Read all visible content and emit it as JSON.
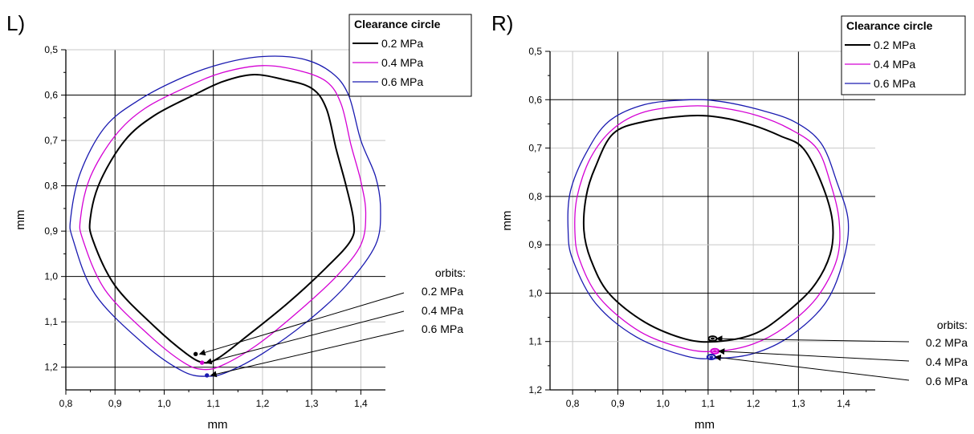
{
  "chart_data": [
    {
      "type": "line",
      "panel_label": "L)",
      "xlabel": "mm",
      "ylabel": "mm",
      "xlim": [
        0.8,
        1.45
      ],
      "ylim": [
        1.25,
        0.5
      ],
      "y_inverted": true,
      "xticks": [
        "0,8",
        "0,9",
        "1,0",
        "1,1",
        "1,2",
        "1,3",
        "1,4"
      ],
      "yticks": [
        "0,5",
        "0,6",
        "0,7",
        "0,8",
        "0,9",
        "1,0",
        "1,1",
        "1,2"
      ],
      "grid": true,
      "legend": {
        "title": "Clearance circle",
        "placement": "top-right"
      },
      "series": [
        {
          "name": "0.2 MPa",
          "color": "#000000",
          "points": [
            [
              1.18,
              0.555
            ],
            [
              1.24,
              0.565
            ],
            [
              1.3,
              0.585
            ],
            [
              1.33,
              0.63
            ],
            [
              1.35,
              0.72
            ],
            [
              1.37,
              0.8
            ],
            [
              1.385,
              0.875
            ],
            [
              1.38,
              0.92
            ],
            [
              1.33,
              0.98
            ],
            [
              1.25,
              1.06
            ],
            [
              1.17,
              1.13
            ],
            [
              1.11,
              1.18
            ],
            [
              1.08,
              1.19
            ],
            [
              1.045,
              1.17
            ],
            [
              0.98,
              1.11
            ],
            [
              0.9,
              1.02
            ],
            [
              0.855,
              0.92
            ],
            [
              0.85,
              0.87
            ],
            [
              0.87,
              0.79
            ],
            [
              0.92,
              0.7
            ],
            [
              0.98,
              0.645
            ],
            [
              1.06,
              0.6
            ],
            [
              1.12,
              0.57
            ],
            [
              1.18,
              0.555
            ]
          ]
        },
        {
          "name": "0.4 MPa",
          "color": "#d400d4",
          "points": [
            [
              1.2,
              0.535
            ],
            [
              1.27,
              0.545
            ],
            [
              1.33,
              0.57
            ],
            [
              1.36,
              0.62
            ],
            [
              1.38,
              0.71
            ],
            [
              1.4,
              0.79
            ],
            [
              1.41,
              0.86
            ],
            [
              1.4,
              0.93
            ],
            [
              1.35,
              1.0
            ],
            [
              1.27,
              1.08
            ],
            [
              1.19,
              1.15
            ],
            [
              1.12,
              1.195
            ],
            [
              1.08,
              1.205
            ],
            [
              1.04,
              1.19
            ],
            [
              0.97,
              1.13
            ],
            [
              0.88,
              1.03
            ],
            [
              0.835,
              0.92
            ],
            [
              0.83,
              0.87
            ],
            [
              0.85,
              0.78
            ],
            [
              0.9,
              0.69
            ],
            [
              0.96,
              0.63
            ],
            [
              1.05,
              0.58
            ],
            [
              1.12,
              0.55
            ],
            [
              1.2,
              0.535
            ]
          ]
        },
        {
          "name": "0.6 MPa",
          "color": "#1a1ab0",
          "points": [
            [
              1.2,
              0.515
            ],
            [
              1.28,
              0.52
            ],
            [
              1.34,
              0.55
            ],
            [
              1.375,
              0.6
            ],
            [
              1.4,
              0.7
            ],
            [
              1.43,
              0.78
            ],
            [
              1.44,
              0.85
            ],
            [
              1.43,
              0.93
            ],
            [
              1.37,
              1.02
            ],
            [
              1.29,
              1.1
            ],
            [
              1.2,
              1.17
            ],
            [
              1.13,
              1.21
            ],
            [
              1.09,
              1.22
            ],
            [
              1.04,
              1.21
            ],
            [
              0.96,
              1.15
            ],
            [
              0.86,
              1.04
            ],
            [
              0.815,
              0.92
            ],
            [
              0.81,
              0.87
            ],
            [
              0.83,
              0.77
            ],
            [
              0.88,
              0.67
            ],
            [
              0.95,
              0.61
            ],
            [
              1.04,
              0.56
            ],
            [
              1.12,
              0.53
            ],
            [
              1.2,
              0.515
            ]
          ]
        }
      ],
      "orbits": [
        {
          "color": "#000000",
          "x": 1.064,
          "y": 1.171
        },
        {
          "color": "#d400d4",
          "x": 1.077,
          "y": 1.19
        },
        {
          "color": "#1a1ab0",
          "x": 1.087,
          "y": 1.218
        }
      ],
      "orbits_title": "orbits:",
      "orbit_labels": [
        "0.2 MPa",
        "0.4 MPa",
        "0.6 MPa"
      ]
    },
    {
      "type": "line",
      "panel_label": "R)",
      "xlabel": "mm",
      "ylabel": "mm",
      "xlim": [
        0.75,
        1.47
      ],
      "ylim": [
        1.2,
        0.5
      ],
      "y_inverted": true,
      "xticks": [
        "0,8",
        "0,9",
        "1,0",
        "1,1",
        "1,2",
        "1,3",
        "1,4"
      ],
      "yticks": [
        "0,5",
        "0,6",
        "0,7",
        "0,8",
        "0,9",
        "1,0",
        "1,1",
        "1,2"
      ],
      "grid": true,
      "legend": {
        "title": "Clearance circle",
        "placement": "top-right"
      },
      "series": [
        {
          "name": "0.2 MPa",
          "color": "#000000",
          "points": [
            [
              1.06,
              0.633
            ],
            [
              1.13,
              0.637
            ],
            [
              1.2,
              0.653
            ],
            [
              1.26,
              0.675
            ],
            [
              1.31,
              0.7
            ],
            [
              1.35,
              0.77
            ],
            [
              1.375,
              0.85
            ],
            [
              1.37,
              0.92
            ],
            [
              1.33,
              0.99
            ],
            [
              1.26,
              1.05
            ],
            [
              1.2,
              1.085
            ],
            [
              1.12,
              1.1
            ],
            [
              1.05,
              1.095
            ],
            [
              0.96,
              1.06
            ],
            [
              0.88,
              1.0
            ],
            [
              0.84,
              0.93
            ],
            [
              0.825,
              0.87
            ],
            [
              0.83,
              0.8
            ],
            [
              0.85,
              0.74
            ],
            [
              0.89,
              0.67
            ],
            [
              0.96,
              0.645
            ],
            [
              1.06,
              0.633
            ]
          ]
        },
        {
          "name": "0.4 MPa",
          "color": "#d400d4",
          "points": [
            [
              1.06,
              0.613
            ],
            [
              1.13,
              0.617
            ],
            [
              1.21,
              0.633
            ],
            [
              1.28,
              0.66
            ],
            [
              1.34,
              0.7
            ],
            [
              1.37,
              0.77
            ],
            [
              1.39,
              0.85
            ],
            [
              1.385,
              0.93
            ],
            [
              1.34,
              1.01
            ],
            [
              1.27,
              1.07
            ],
            [
              1.2,
              1.105
            ],
            [
              1.12,
              1.12
            ],
            [
              1.05,
              1.115
            ],
            [
              0.95,
              1.08
            ],
            [
              0.86,
              1.01
            ],
            [
              0.815,
              0.93
            ],
            [
              0.805,
              0.87
            ],
            [
              0.81,
              0.8
            ],
            [
              0.84,
              0.72
            ],
            [
              0.89,
              0.66
            ],
            [
              0.96,
              0.625
            ],
            [
              1.06,
              0.613
            ]
          ]
        },
        {
          "name": "0.6 MPa",
          "color": "#1a1ab0",
          "points": [
            [
              1.06,
              0.6
            ],
            [
              1.13,
              0.604
            ],
            [
              1.21,
              0.62
            ],
            [
              1.29,
              0.645
            ],
            [
              1.35,
              0.69
            ],
            [
              1.385,
              0.77
            ],
            [
              1.41,
              0.85
            ],
            [
              1.4,
              0.93
            ],
            [
              1.36,
              1.02
            ],
            [
              1.28,
              1.09
            ],
            [
              1.2,
              1.125
            ],
            [
              1.12,
              1.135
            ],
            [
              1.05,
              1.13
            ],
            [
              0.94,
              1.09
            ],
            [
              0.85,
              1.02
            ],
            [
              0.8,
              0.93
            ],
            [
              0.79,
              0.87
            ],
            [
              0.795,
              0.79
            ],
            [
              0.83,
              0.71
            ],
            [
              0.88,
              0.645
            ],
            [
              0.96,
              0.61
            ],
            [
              1.06,
              0.6
            ]
          ]
        }
      ],
      "orbits": [
        {
          "color": "#000000",
          "x": 1.11,
          "y": 1.094
        },
        {
          "color": "#d400d4",
          "x": 1.115,
          "y": 1.12
        },
        {
          "color": "#1a1ab0",
          "x": 1.107,
          "y": 1.132
        }
      ],
      "orbits_title": "orbits:",
      "orbit_labels": [
        "0.2 MPa",
        "0.4 MPa",
        "0.6 MPa"
      ]
    }
  ]
}
